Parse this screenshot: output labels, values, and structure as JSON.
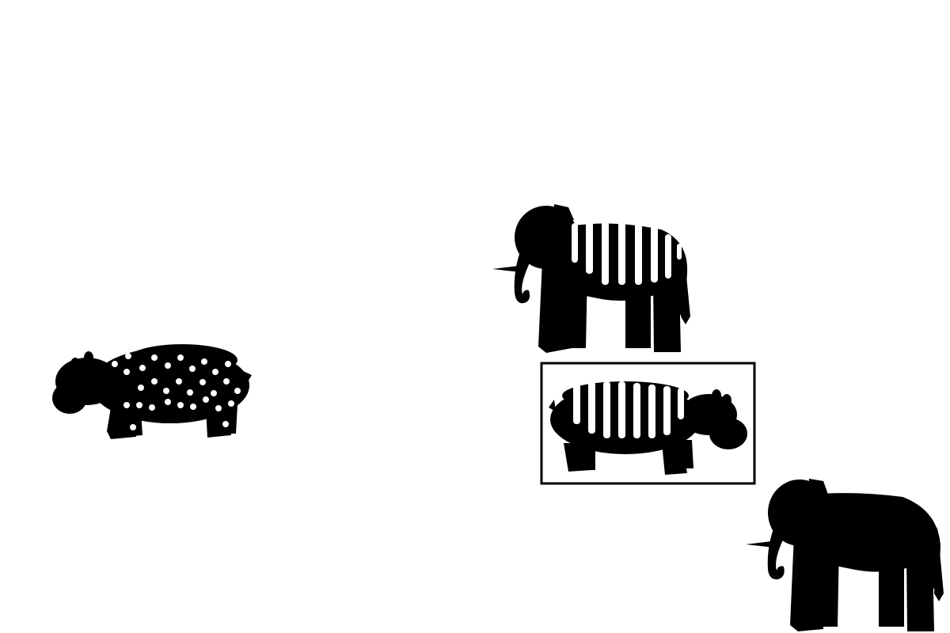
{
  "scene": {
    "description_visible_text": "",
    "background_color": "#ffffff",
    "silhouette_color": "#000000",
    "pattern_color": "#ffffff"
  },
  "figures": [
    {
      "id": "hippo-dotted",
      "species": "hippo",
      "pattern": "dots",
      "facing": "left",
      "framed": false
    },
    {
      "id": "elephant-striped",
      "species": "elephant",
      "pattern": "stripes",
      "facing": "left",
      "framed": false
    },
    {
      "id": "hippo-striped",
      "species": "hippo",
      "pattern": "stripes",
      "facing": "right",
      "framed": true
    },
    {
      "id": "elephant-plain",
      "species": "elephant",
      "pattern": "none",
      "facing": "left",
      "framed": false
    }
  ]
}
